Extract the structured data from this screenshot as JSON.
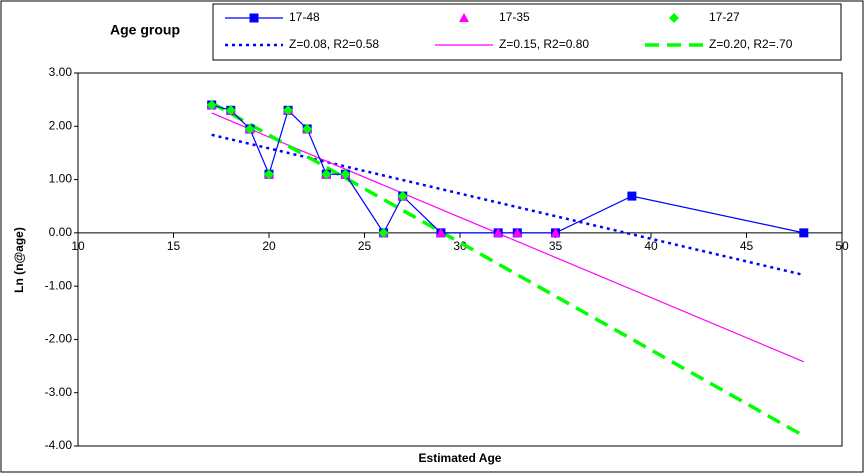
{
  "chart_data": {
    "type": "scatter",
    "legend_title": "Age group",
    "xlabel": "Estimated Age",
    "ylabel": "Ln (n@age)",
    "xlim": [
      10,
      50
    ],
    "xticks": [
      10,
      15,
      20,
      25,
      30,
      35,
      40,
      45,
      50
    ],
    "ylim": [
      -4,
      3
    ],
    "yticks": [
      {
        "value": -4,
        "label": "-4.00"
      },
      {
        "value": -3,
        "label": "-3.00"
      },
      {
        "value": -2,
        "label": "-2.00"
      },
      {
        "value": -1,
        "label": "-1.00"
      },
      {
        "value": 0,
        "label": "0.00"
      },
      {
        "value": 1,
        "label": "1.00"
      },
      {
        "value": 2,
        "label": "2.00"
      },
      {
        "value": 3,
        "label": "3.00"
      }
    ],
    "grid": false,
    "series": [
      {
        "name": "17-48",
        "color": "#0000ff",
        "marker": "square",
        "line": "solid",
        "x": [
          17,
          18,
          19,
          20,
          21,
          22,
          23,
          24,
          26,
          27,
          29,
          32,
          33,
          35,
          39,
          48
        ],
        "values": [
          2.4,
          2.3,
          1.95,
          1.1,
          2.3,
          1.95,
          1.1,
          1.1,
          0,
          0.69,
          0,
          0,
          0,
          0,
          0.69,
          0
        ]
      },
      {
        "name": "17-35",
        "color": "#ff00ff",
        "marker": "triangle",
        "line": "none",
        "x": [
          17,
          18,
          19,
          20,
          21,
          22,
          23,
          24,
          26,
          27,
          29,
          32,
          33,
          35
        ],
        "values": [
          2.4,
          2.3,
          1.95,
          1.1,
          2.3,
          1.95,
          1.1,
          1.1,
          0,
          0.69,
          0,
          0,
          0,
          0
        ]
      },
      {
        "name": "17-27",
        "color": "#00ff00",
        "marker": "diamond",
        "line": "none",
        "x": [
          17,
          18,
          19,
          20,
          21,
          22,
          23,
          24,
          26,
          27
        ],
        "values": [
          2.4,
          2.3,
          1.95,
          1.1,
          2.3,
          1.95,
          1.1,
          1.1,
          0,
          0.69
        ]
      },
      {
        "name": "Z=0.08, R2=0.58",
        "color": "#0000ff",
        "marker": "none",
        "line": "dotted",
        "x": [
          17,
          48
        ],
        "values": [
          1.84,
          -0.79
        ]
      },
      {
        "name": "Z=0.15, R2=0.80",
        "color": "#ff00ff",
        "marker": "none",
        "line": "solid",
        "x": [
          17,
          48
        ],
        "values": [
          2.25,
          -2.42
        ]
      },
      {
        "name": "Z=0.20, R2=.70",
        "color": "#00ff00",
        "marker": "none",
        "line": "dashed",
        "x": [
          17,
          48
        ],
        "values": [
          2.44,
          -3.81
        ]
      }
    ]
  }
}
